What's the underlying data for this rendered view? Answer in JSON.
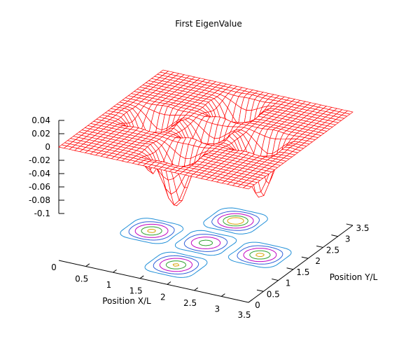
{
  "chart_data": {
    "type": "surface",
    "title": "First EigenValue",
    "xlabel": "Position X/L",
    "ylabel": "Position Y/L",
    "zlabel": "",
    "xlim": [
      0,
      3.5
    ],
    "ylim": [
      0,
      3.5
    ],
    "zlim": [
      -0.1,
      0.04
    ],
    "x_ticks": [
      "0.5",
      "1",
      "1.5",
      "2",
      "2.5",
      "3",
      "3.5"
    ],
    "y_ticks": [
      "0.5",
      "1",
      "1.5",
      "2",
      "2.5",
      "3",
      "3.5"
    ],
    "z_ticks": [
      "0.04",
      "0.02",
      "0",
      "-0.02",
      "-0.04",
      "-0.06",
      "-0.08",
      "-0.1"
    ],
    "origin_label": "0",
    "base_contours": true,
    "grid": false,
    "surface_color": "#ff0000",
    "wells": [
      {
        "x": 1.75,
        "y": 2.75,
        "depth": -0.1
      },
      {
        "x": 0.75,
        "y": 1.75,
        "depth": -0.085
      },
      {
        "x": 2.75,
        "y": 1.75,
        "depth": -0.085
      },
      {
        "x": 1.75,
        "y": 0.75,
        "depth": -0.083
      },
      {
        "x": 1.75,
        "y": 1.75,
        "depth": -0.07
      }
    ],
    "contour_colors": [
      "#1f8fd8",
      "#3060d8",
      "#c000c0",
      "#2ca02c",
      "#d8a000"
    ]
  }
}
